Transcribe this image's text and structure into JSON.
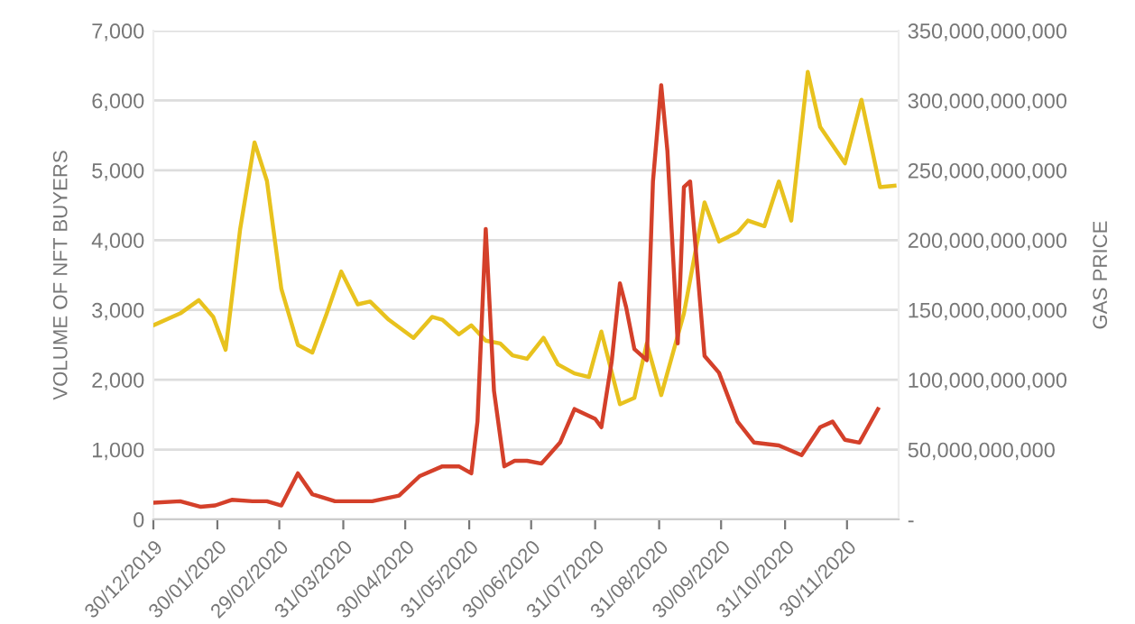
{
  "chart_data": {
    "type": "line",
    "ylabel": "VOLUME OF NFT BUYERS",
    "y2label": "GAS PRICE",
    "xlim": [
      "2019-12-30",
      "2020-12-25"
    ],
    "xticks": [
      {
        "value": "2019-12-30",
        "label": "30/12/2019"
      },
      {
        "value": "2020-01-30",
        "label": "30/01/2020"
      },
      {
        "value": "2020-02-29",
        "label": "29/02/2020"
      },
      {
        "value": "2020-03-31",
        "label": "31/03/2020"
      },
      {
        "value": "2020-04-30",
        "label": "30/04/2020"
      },
      {
        "value": "2020-05-31",
        "label": "31/05/2020"
      },
      {
        "value": "2020-06-30",
        "label": "30/06/2020"
      },
      {
        "value": "2020-07-31",
        "label": "31/07/2020"
      },
      {
        "value": "2020-08-31",
        "label": "31/08/2020"
      },
      {
        "value": "2020-09-30",
        "label": "30/09/2020"
      },
      {
        "value": "2020-10-31",
        "label": "31/10/2020"
      },
      {
        "value": "2020-11-30",
        "label": "30/11/2020"
      }
    ],
    "ylim": [
      0,
      7000
    ],
    "yticks": [
      {
        "value": 0,
        "label": "0"
      },
      {
        "value": 1000,
        "label": "1,000"
      },
      {
        "value": 2000,
        "label": "2,000"
      },
      {
        "value": 3000,
        "label": "3,000"
      },
      {
        "value": 4000,
        "label": "4,000"
      },
      {
        "value": 5000,
        "label": "5,000"
      },
      {
        "value": 6000,
        "label": "6,000"
      },
      {
        "value": 7000,
        "label": "7,000"
      }
    ],
    "y2lim": [
      0,
      350000000000
    ],
    "y2ticks": [
      {
        "value": 0,
        "label": "-"
      },
      {
        "value": 50000000000,
        "label": "50,000,000,000"
      },
      {
        "value": 100000000000,
        "label": "100,000,000,000"
      },
      {
        "value": 150000000000,
        "label": "150,000,000,000"
      },
      {
        "value": 200000000000,
        "label": "200,000,000,000"
      },
      {
        "value": 250000000000,
        "label": "250,000,000,000"
      },
      {
        "value": 300000000000,
        "label": "300,000,000,000"
      },
      {
        "value": 350000000000,
        "label": "350,000,000,000"
      }
    ],
    "grid": "y",
    "marker": "none",
    "line_style": "solid",
    "series": [
      {
        "color": "#e8c21e",
        "x": [
          "2019-12-30",
          "2020-01-12",
          "2020-01-21",
          "2020-01-28",
          "2020-02-03",
          "2020-02-10",
          "2020-02-17",
          "2020-02-23",
          "2020-03-01",
          "2020-03-09",
          "2020-03-16",
          "2020-03-23",
          "2020-03-30",
          "2020-04-07",
          "2020-04-13",
          "2020-04-22",
          "2020-05-04",
          "2020-05-13",
          "2020-05-18",
          "2020-05-26",
          "2020-06-01",
          "2020-06-08",
          "2020-06-15",
          "2020-06-21",
          "2020-06-28",
          "2020-07-06",
          "2020-07-13",
          "2020-07-21",
          "2020-07-28",
          "2020-08-03",
          "2020-08-12",
          "2020-08-19",
          "2020-08-25",
          "2020-09-01",
          "2020-09-12",
          "2020-09-22",
          "2020-09-29",
          "2020-10-08",
          "2020-10-13",
          "2020-10-21",
          "2020-10-28",
          "2020-11-03",
          "2020-11-11",
          "2020-11-17",
          "2020-11-29",
          "2020-12-07",
          "2020-12-16",
          "2020-12-23"
        ],
        "values": [
          2780,
          2950,
          3140,
          2900,
          2430,
          4150,
          5400,
          4850,
          3300,
          2500,
          2390,
          2950,
          3550,
          3080,
          3120,
          2860,
          2600,
          2900,
          2860,
          2650,
          2780,
          2560,
          2520,
          2350,
          2300,
          2600,
          2220,
          2090,
          2040,
          2690,
          1650,
          1740,
          2520,
          1780,
          2950,
          4540,
          3980,
          4110,
          4280,
          4200,
          4840,
          4280,
          6410,
          5620,
          5100,
          6010,
          4760,
          4780
        ]
      },
      {
        "color": "#d4402a",
        "axis": "y2",
        "x": [
          "2019-12-30",
          "2020-01-12",
          "2020-01-22",
          "2020-01-29",
          "2020-02-06",
          "2020-02-16",
          "2020-02-23",
          "2020-03-01",
          "2020-03-09",
          "2020-03-16",
          "2020-03-27",
          "2020-04-14",
          "2020-04-27",
          "2020-05-07",
          "2020-05-18",
          "2020-05-26",
          "2020-06-01",
          "2020-06-04",
          "2020-06-08",
          "2020-06-12",
          "2020-06-17",
          "2020-06-22",
          "2020-06-28",
          "2020-07-05",
          "2020-07-14",
          "2020-07-21",
          "2020-07-31",
          "2020-08-03",
          "2020-08-08",
          "2020-08-12",
          "2020-08-15",
          "2020-08-19",
          "2020-08-25",
          "2020-08-28",
          "2020-09-01",
          "2020-09-04",
          "2020-09-09",
          "2020-09-12",
          "2020-09-15",
          "2020-09-22",
          "2020-09-29",
          "2020-10-08",
          "2020-10-16",
          "2020-10-28",
          "2020-11-08",
          "2020-11-17",
          "2020-11-23",
          "2020-11-29",
          "2020-12-06",
          "2020-12-15"
        ],
        "values": [
          12000000000,
          13000000000,
          9000000000,
          10000000000,
          14000000000,
          13000000000,
          13000000000,
          10000000000,
          33000000000,
          18000000000,
          13000000000,
          13000000000,
          17000000000,
          31000000000,
          38000000000,
          38000000000,
          33000000000,
          70000000000,
          208000000000,
          92000000000,
          38000000000,
          42000000000,
          42000000000,
          40000000000,
          55000000000,
          79000000000,
          72000000000,
          66000000000,
          113000000000,
          169000000000,
          152000000000,
          122000000000,
          114000000000,
          242000000000,
          311000000000,
          264000000000,
          126000000000,
          238000000000,
          242000000000,
          117000000000,
          105000000000,
          70000000000,
          55000000000,
          53000000000,
          46000000000,
          66000000000,
          70000000000,
          57000000000,
          55000000000,
          79000000000
        ]
      }
    ]
  }
}
